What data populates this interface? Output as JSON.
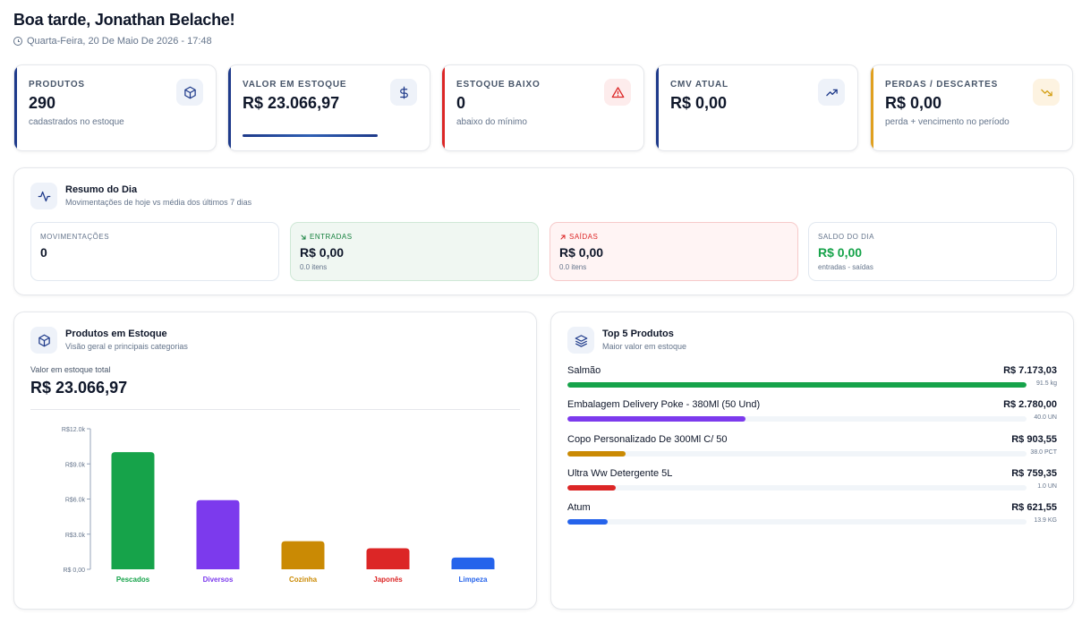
{
  "header": {
    "greeting": "Boa tarde, Jonathan Belache!",
    "datetime": "Quarta-Feira, 20 De Maio De 2026 - 17:48"
  },
  "kpis": [
    {
      "label": "PRODUTOS",
      "value": "290",
      "sub": "cadastrados no estoque",
      "icon": "box-icon",
      "accent": "#1e3a8a",
      "icon_bg": "#eef2f9"
    },
    {
      "label": "VALOR EM ESTOQUE",
      "value": "R$ 23.066,97",
      "sub": "",
      "icon": "dollar-icon",
      "accent": "#1e3a8a",
      "icon_bg": "#eef2f9",
      "progress": 1.0
    },
    {
      "label": "ESTOQUE BAIXO",
      "value": "0",
      "sub": "abaixo do mínimo",
      "icon": "alert-triangle-icon",
      "accent": "#dc2626",
      "icon_bg": "#fdecec"
    },
    {
      "label": "CMV ATUAL",
      "value": "R$ 0,00",
      "sub": "",
      "icon": "trending-up-icon",
      "accent": "#1e3a8a",
      "icon_bg": "#eef2f9"
    },
    {
      "label": "PERDAS / DESCARTES",
      "value": "R$ 0,00",
      "sub": "perda + vencimento no período",
      "icon": "trending-down-icon",
      "accent": "#e0a020",
      "icon_bg": "#fdf3e1"
    }
  ],
  "resumo": {
    "title": "Resumo do Dia",
    "subtitle": "Movimentações de hoje vs média dos últimos 7 dias",
    "cards": [
      {
        "label": "MOVIMENTAÇÕES",
        "value": "0",
        "sub": "",
        "variant": "neutral"
      },
      {
        "label": "ENTRADAS",
        "value": "R$ 0,00",
        "sub": "0.0 itens",
        "variant": "in"
      },
      {
        "label": "SAÍDAS",
        "value": "R$ 0,00",
        "sub": "0.0 itens",
        "variant": "out"
      },
      {
        "label": "SALDO DO DIA",
        "value": "R$ 0,00",
        "sub": "entradas - saídas",
        "variant": "balance"
      }
    ]
  },
  "estoque": {
    "title": "Produtos em Estoque",
    "subtitle": "Visão geral e principais categorias",
    "total_label": "Valor em estoque total",
    "total_value": "R$ 23.066,97"
  },
  "chart_data": {
    "type": "bar",
    "categories": [
      "Pescados",
      "Diversos",
      "Cozinha",
      "Japonês",
      "Limpeza"
    ],
    "values": [
      10000,
      5900,
      2400,
      1800,
      1000
    ],
    "colors": [
      "#16a34a",
      "#7c3aed",
      "#ca8a04",
      "#dc2626",
      "#2563eb"
    ],
    "yticks": [
      "R$12.0k",
      "R$9.0k",
      "R$6.0k",
      "R$3.0k",
      "R$ 0,00"
    ],
    "ylim": [
      0,
      12000
    ],
    "grid": false
  },
  "top5": {
    "title": "Top 5 Produtos",
    "subtitle": "Maior valor em estoque",
    "items": [
      {
        "name": "Salmão",
        "value": "R$ 7.173,03",
        "qty": "91.5 kg",
        "fraction": 1.0,
        "color": "#16a34a"
      },
      {
        "name": "Embalagem Delivery Poke - 380Ml (50 Und)",
        "value": "R$ 2.780,00",
        "qty": "40.0 UN",
        "fraction": 0.388,
        "color": "#7c3aed"
      },
      {
        "name": "Copo Personalizado De 300Ml C/ 50",
        "value": "R$ 903,55",
        "qty": "38.0 PCT",
        "fraction": 0.126,
        "color": "#ca8a04"
      },
      {
        "name": "Ultra Ww Detergente 5L",
        "value": "R$ 759,35",
        "qty": "1.0 UN",
        "fraction": 0.106,
        "color": "#dc2626"
      },
      {
        "name": "Atum",
        "value": "R$ 621,55",
        "qty": "13.9 KG",
        "fraction": 0.087,
        "color": "#2563eb"
      }
    ]
  }
}
